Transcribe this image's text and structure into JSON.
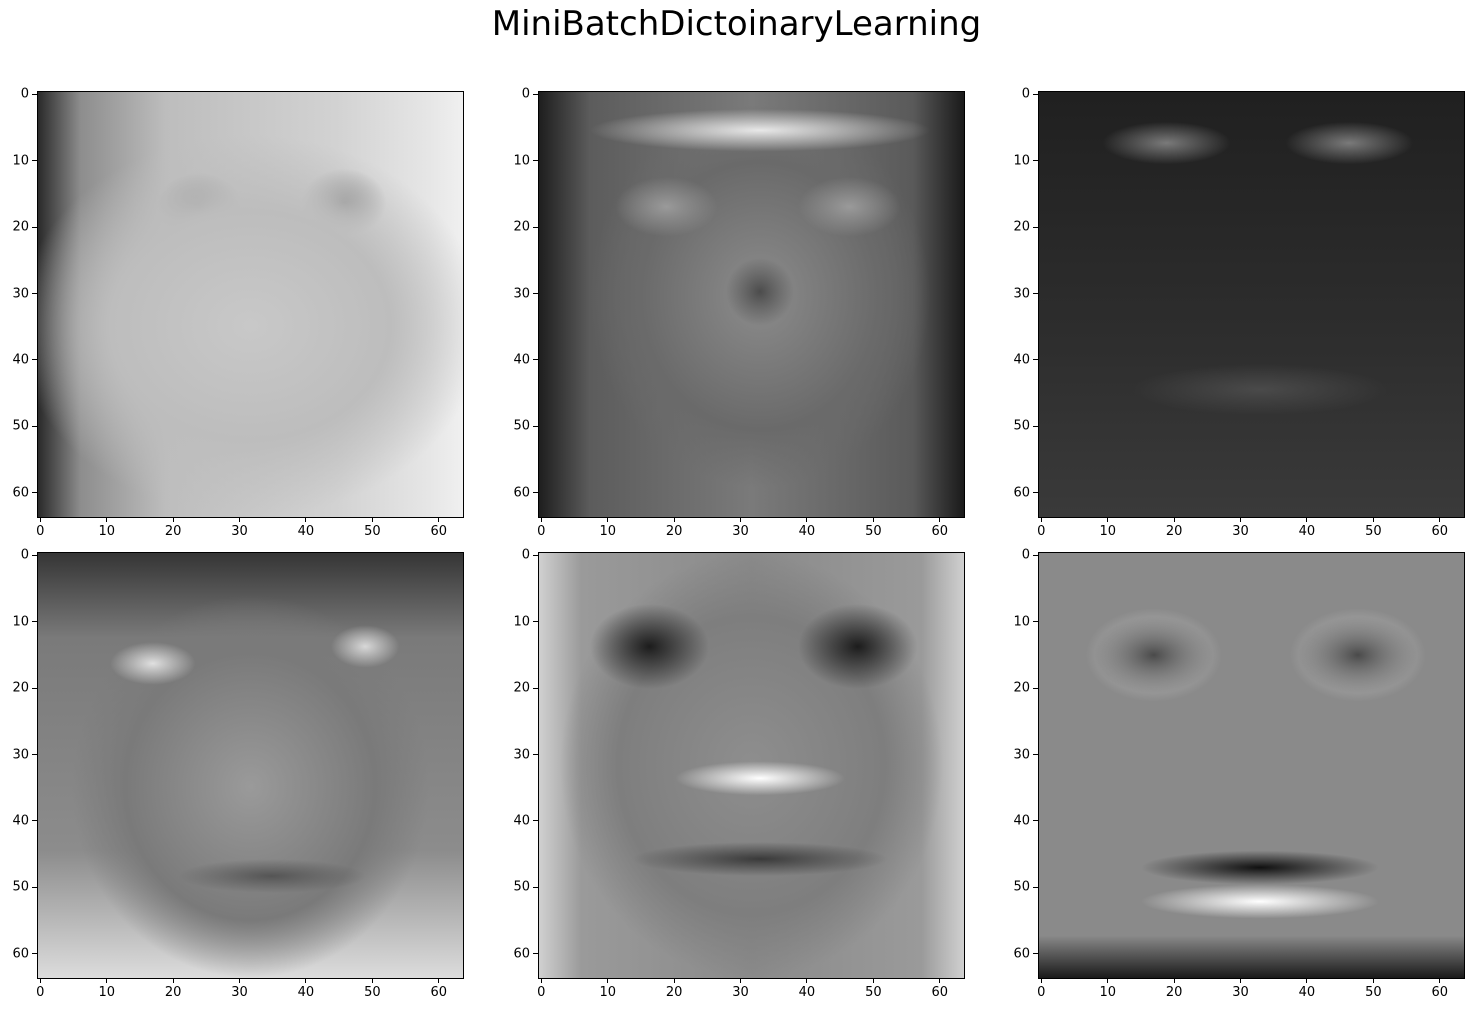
{
  "title": "MiniBatchDictoinaryLearning",
  "chart_data": {
    "type": "heatmap",
    "title": "MiniBatchDictoinaryLearning",
    "colormap": "gray",
    "grid": false,
    "image_size": [
      64,
      64
    ],
    "xlim": [
      -0.5,
      63.5
    ],
    "ylim": [
      63.5,
      -0.5
    ],
    "xticks": [
      0,
      10,
      20,
      30,
      40,
      50,
      60
    ],
    "yticks": [
      0,
      10,
      20,
      30,
      40,
      50,
      60
    ],
    "xtick_labels": [
      "0",
      "10",
      "20",
      "30",
      "40",
      "50",
      "60"
    ],
    "ytick_labels": [
      "0",
      "10",
      "20",
      "30",
      "40",
      "50",
      "60"
    ],
    "layout": {
      "rows": 2,
      "cols": 3
    },
    "panels": [
      {
        "component": 1,
        "base": 0.78,
        "mean": 0.72
      },
      {
        "component": 2,
        "base": 0.5,
        "mean": 0.48
      },
      {
        "component": 3,
        "base": 0.18,
        "mean": 0.22
      },
      {
        "component": 4,
        "base": 0.52,
        "mean": 0.5
      },
      {
        "component": 5,
        "base": 0.58,
        "mean": 0.52
      },
      {
        "component": 6,
        "base": 0.55,
        "mean": 0.5
      }
    ]
  }
}
